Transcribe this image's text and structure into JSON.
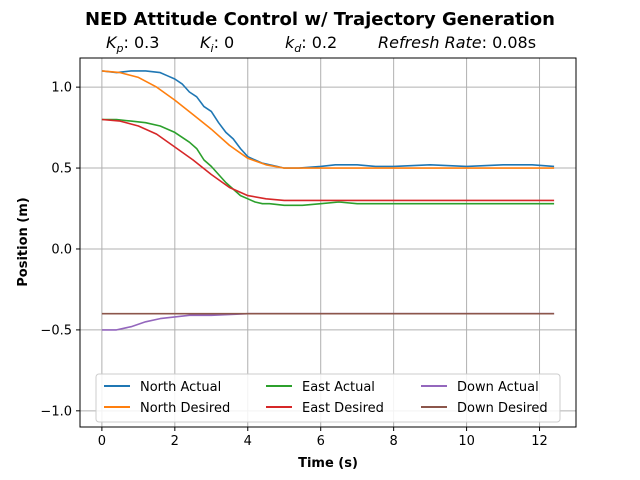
{
  "chart_data": {
    "type": "line",
    "title": "NED Attitude Control w/ Trajectory Generation",
    "subtitle": "K_p: 0.3   K_i: 0   k_d: 0.2   Refresh Rate: 0.08s",
    "params": {
      "kp_symbol": "K",
      "kp_sub": "p",
      "kp_value": ":  0.3",
      "ki_symbol": "K",
      "ki_sub": "i",
      "ki_value": ":  0",
      "kd_symbol": "k",
      "kd_sub": "d",
      "kd_value": ":  0.2",
      "rate_label": "Refresh Rate",
      "rate_value": ":  0.08s"
    },
    "xlabel": "Time (s)",
    "ylabel": "Position (m)",
    "xlim": [
      -0.6,
      13.0
    ],
    "ylim": [
      -1.1,
      1.18
    ],
    "xticks": [
      0,
      2,
      4,
      6,
      8,
      10,
      12
    ],
    "xtick_labels": [
      "0",
      "2",
      "4",
      "6",
      "8",
      "10",
      "12"
    ],
    "yticks": [
      -1.0,
      -0.5,
      0.0,
      0.5,
      1.0
    ],
    "ytick_labels": [
      "−1.0",
      "−0.5",
      "0.0",
      "0.5",
      "1.0"
    ],
    "grid": true,
    "legend_placement": "lower-center",
    "series": [
      {
        "name": "North Actual",
        "color": "#1f77b4",
        "x": [
          0,
          0.4,
          0.8,
          1.2,
          1.6,
          1.8,
          2.0,
          2.2,
          2.4,
          2.6,
          2.8,
          3.0,
          3.2,
          3.4,
          3.6,
          3.8,
          4.0,
          4.2,
          4.4,
          4.6,
          4.8,
          5.0,
          5.4,
          6.0,
          6.4,
          7.0,
          7.5,
          8.0,
          9.0,
          10.0,
          11.0,
          11.8,
          12.4
        ],
        "y": [
          1.1,
          1.09,
          1.1,
          1.1,
          1.09,
          1.07,
          1.05,
          1.02,
          0.97,
          0.94,
          0.88,
          0.85,
          0.78,
          0.72,
          0.68,
          0.62,
          0.57,
          0.55,
          0.53,
          0.52,
          0.51,
          0.5,
          0.5,
          0.51,
          0.52,
          0.52,
          0.51,
          0.51,
          0.52,
          0.51,
          0.52,
          0.52,
          0.51
        ]
      },
      {
        "name": "North Desired",
        "color": "#ff7f0e",
        "x": [
          0,
          0.5,
          1.0,
          1.5,
          2.0,
          2.5,
          3.0,
          3.5,
          4.0,
          4.5,
          5.0,
          5.5,
          6.0,
          7.0,
          8.0,
          9.0,
          10.0,
          11.0,
          12.0,
          12.4
        ],
        "y": [
          1.1,
          1.09,
          1.06,
          1.0,
          0.92,
          0.83,
          0.74,
          0.64,
          0.56,
          0.52,
          0.5,
          0.5,
          0.5,
          0.5,
          0.5,
          0.5,
          0.5,
          0.5,
          0.5,
          0.5
        ]
      },
      {
        "name": "East Actual",
        "color": "#2ca02c",
        "x": [
          0,
          0.4,
          0.8,
          1.2,
          1.6,
          2.0,
          2.2,
          2.4,
          2.6,
          2.8,
          3.0,
          3.2,
          3.4,
          3.6,
          3.8,
          4.0,
          4.2,
          4.4,
          4.6,
          5.0,
          5.5,
          6.0,
          6.5,
          7.0,
          8.0,
          9.0,
          10.0,
          11.0,
          12.0,
          12.4
        ],
        "y": [
          0.8,
          0.8,
          0.79,
          0.78,
          0.76,
          0.72,
          0.69,
          0.66,
          0.62,
          0.55,
          0.51,
          0.46,
          0.41,
          0.37,
          0.33,
          0.31,
          0.29,
          0.28,
          0.28,
          0.27,
          0.27,
          0.28,
          0.29,
          0.28,
          0.28,
          0.28,
          0.28,
          0.28,
          0.28,
          0.28
        ]
      },
      {
        "name": "East Desired",
        "color": "#d62728",
        "x": [
          0,
          0.5,
          1.0,
          1.5,
          2.0,
          2.5,
          3.0,
          3.5,
          4.0,
          4.5,
          5.0,
          5.5,
          6.0,
          7.0,
          8.0,
          9.0,
          10.0,
          11.0,
          12.0,
          12.4
        ],
        "y": [
          0.8,
          0.79,
          0.76,
          0.71,
          0.63,
          0.55,
          0.46,
          0.38,
          0.33,
          0.31,
          0.3,
          0.3,
          0.3,
          0.3,
          0.3,
          0.3,
          0.3,
          0.3,
          0.3,
          0.3
        ]
      },
      {
        "name": "Down Actual",
        "color": "#9467bd",
        "x": [
          0,
          0.4,
          0.8,
          1.2,
          1.6,
          2.0,
          2.4,
          3.0,
          4.0,
          5.0,
          6.0,
          7.0,
          8.0,
          9.0,
          10.0,
          11.0,
          12.0,
          12.4
        ],
        "y": [
          -0.5,
          -0.5,
          -0.48,
          -0.45,
          -0.43,
          -0.42,
          -0.41,
          -0.41,
          -0.4,
          -0.4,
          -0.4,
          -0.4,
          -0.4,
          -0.4,
          -0.4,
          -0.4,
          -0.4,
          -0.4
        ]
      },
      {
        "name": "Down Desired",
        "color": "#8c564b",
        "x": [
          0,
          2,
          4,
          6,
          8,
          10,
          12,
          12.4
        ],
        "y": [
          -0.4,
          -0.4,
          -0.4,
          -0.4,
          -0.4,
          -0.4,
          -0.4,
          -0.4
        ]
      }
    ]
  }
}
